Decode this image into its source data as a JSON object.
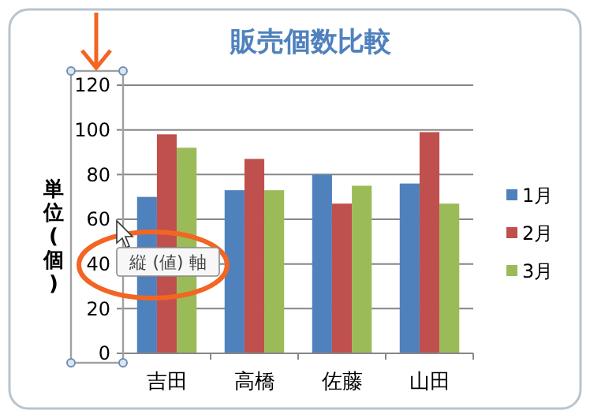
{
  "chart_data": {
    "type": "bar",
    "title": "販売個数比較",
    "ylabel": "単位(個)",
    "categories": [
      "吉田",
      "高橋",
      "佐藤",
      "山田"
    ],
    "series": [
      {
        "name": "1月",
        "color": "#4f81bd",
        "values": [
          70,
          73,
          80,
          76
        ]
      },
      {
        "name": "2月",
        "color": "#c0504d",
        "values": [
          98,
          87,
          67,
          99
        ]
      },
      {
        "name": "3月",
        "color": "#9bbb59",
        "values": [
          92,
          73,
          75,
          67
        ]
      }
    ],
    "ylim": [
      0,
      120
    ],
    "yticks": [
      0,
      20,
      40,
      60,
      80,
      100,
      120
    ],
    "grid": "y",
    "legend": "right",
    "annotations": [
      "縦 (値) 軸"
    ]
  }
}
